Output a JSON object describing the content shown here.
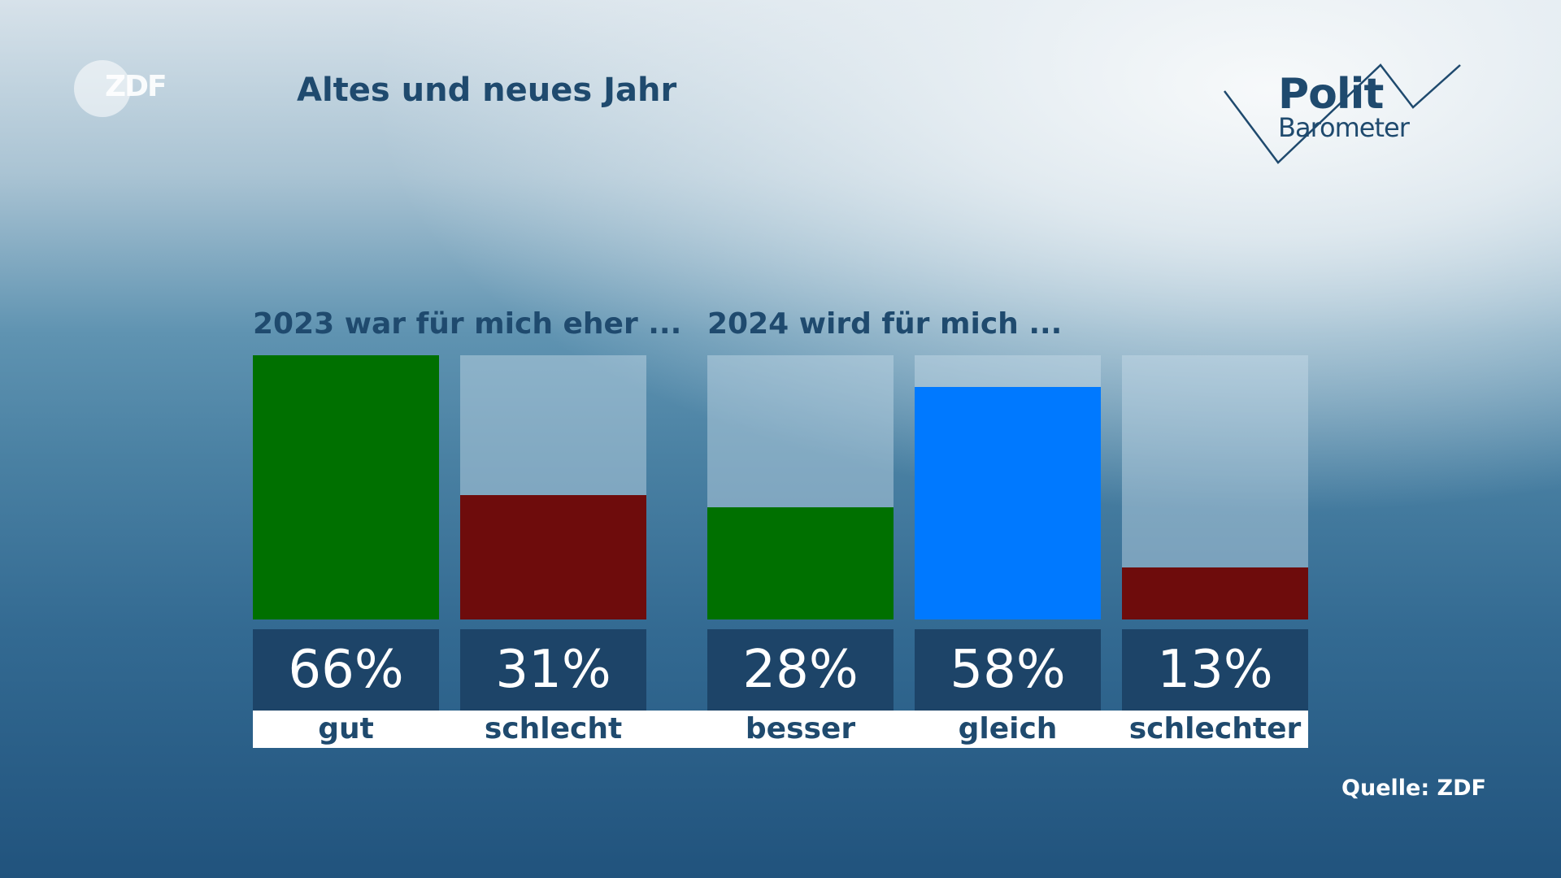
{
  "header": {
    "title": "Altes und neues Jahr",
    "zdf_logo_text": "ZDF",
    "politbarometer_line1": "Polit",
    "politbarometer_line2": "Barometer"
  },
  "source": "Quelle: ZDF",
  "colors": {
    "green": "#007000",
    "dark_red": "#6e0c0c",
    "blue": "#0079ff",
    "value_box": "#1d4468",
    "title": "#1f4a6e"
  },
  "chart_data": [
    {
      "type": "bar",
      "title": "2023 war für mich eher ...",
      "categories": [
        "gut",
        "schlecht"
      ],
      "values": [
        66,
        31
      ],
      "value_labels": [
        "66%",
        "31%"
      ],
      "colors": [
        "#007000",
        "#6e0c0c"
      ],
      "ylim": [
        0,
        66
      ],
      "unit": "%"
    },
    {
      "type": "bar",
      "title": "2024 wird für mich ...",
      "categories": [
        "besser",
        "gleich",
        "schlechter"
      ],
      "values": [
        28,
        58,
        13
      ],
      "value_labels": [
        "28%",
        "58%",
        "13%"
      ],
      "colors": [
        "#007000",
        "#0079ff",
        "#6e0c0c"
      ],
      "ylim": [
        0,
        66
      ],
      "unit": "%"
    }
  ]
}
